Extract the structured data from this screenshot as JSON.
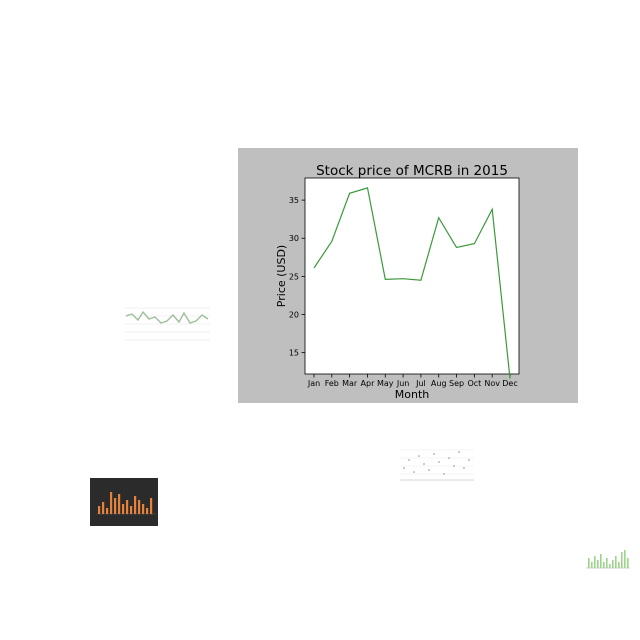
{
  "chart_data": {
    "type": "line",
    "title": "Stock price of MCRB in 2015",
    "xlabel": "Month",
    "ylabel": "Price (USD)",
    "categories": [
      "Jan",
      "Feb",
      "Mar",
      "Apr",
      "May",
      "Jun",
      "Jul",
      "Aug",
      "Sep",
      "Oct",
      "Nov",
      "Dec"
    ],
    "series": [
      {
        "values": [
          26.1,
          29.6,
          35.9,
          36.6,
          24.6,
          24.7,
          24.5,
          32.7,
          28.8,
          29.3,
          33.8,
          11.6
        ]
      }
    ],
    "ylim": [
      12.2,
      37.9
    ],
    "yticks": [
      15,
      20,
      25,
      30,
      35
    ],
    "line_color": "#3a9a3a",
    "panel_background": "#bfbfbf",
    "plot_background": "#ffffff",
    "grid": false,
    "legend": "none"
  },
  "thumbnails": [
    {
      "type": "line",
      "background": "#ffffff",
      "accent": "#9ebf9a"
    },
    {
      "type": "bar",
      "background": "#2b2b2b",
      "accent": "#e8823a"
    },
    {
      "type": "scatter",
      "background": "#ffffff",
      "accent": "#7a8fb0"
    },
    {
      "type": "bar",
      "background": "#ffffff",
      "accent": "#9bd48a"
    }
  ]
}
